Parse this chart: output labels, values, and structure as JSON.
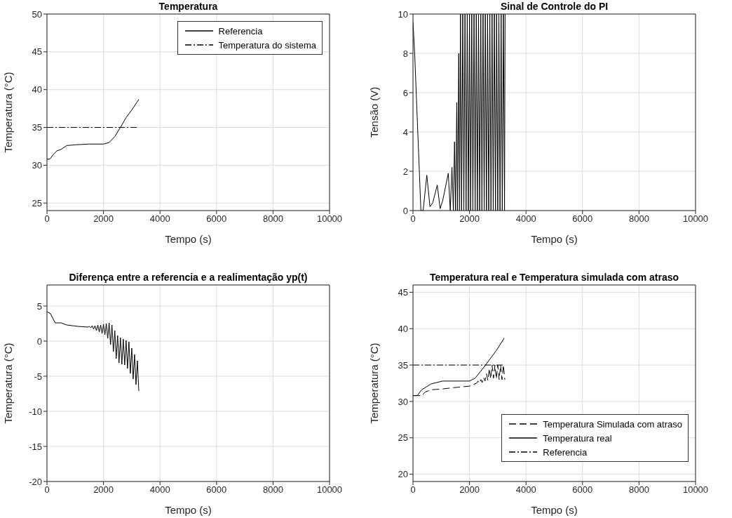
{
  "chart_data": [
    {
      "type": "line",
      "title": "Temperatura",
      "xlabel": "Tempo (s)",
      "ylabel": "Temperatura (°C)",
      "xlim": [
        0,
        10000
      ],
      "ylim": [
        24,
        50
      ],
      "xticks": [
        0,
        2000,
        4000,
        6000,
        8000,
        10000
      ],
      "yticks": [
        25,
        30,
        35,
        40,
        45,
        50
      ],
      "grid": true,
      "legend": "top right",
      "series": [
        {
          "name": "Referencia",
          "color": "#000000",
          "line_style": "solid",
          "x": [
            0,
            100,
            200,
            350,
            500,
            700,
            1000,
            1500,
            2000,
            2200,
            2400,
            2600,
            2800,
            3000,
            3250
          ],
          "values": [
            30.8,
            30.8,
            31.3,
            31.9,
            32.1,
            32.6,
            32.7,
            32.8,
            32.8,
            33.0,
            33.8,
            35.0,
            36.3,
            37.3,
            38.7
          ]
        },
        {
          "name": "Temperatura do sistema",
          "color": "#000000",
          "line_style": "dashdot",
          "x": [
            0,
            3250
          ],
          "values": [
            35,
            35
          ]
        }
      ]
    },
    {
      "type": "line",
      "title": "Sinal de Controle do PI",
      "xlabel": "Tempo (s)",
      "ylabel": "Tensão (V)",
      "xlim": [
        0,
        10000
      ],
      "ylim": [
        0,
        10
      ],
      "xticks": [
        0,
        2000,
        4000,
        6000,
        8000,
        10000
      ],
      "yticks": [
        0,
        2,
        4,
        6,
        8,
        10
      ],
      "grid": true,
      "series": [
        {
          "color": "#000000",
          "line_style": "solid",
          "x": [
            0,
            60,
            280,
            360,
            490,
            600,
            700,
            860,
            960,
            1050,
            1250,
            1320,
            1380,
            1430,
            1470,
            1510,
            1550,
            1580,
            1620,
            1650,
            1680,
            1720,
            1760,
            1800,
            1840,
            1880,
            1920,
            1960,
            2000,
            2040,
            2080,
            2120,
            2160,
            2200,
            2240,
            2280,
            2320,
            2360,
            2400,
            2440,
            2480,
            2520,
            2560,
            2600,
            2640,
            2680,
            2720,
            2760,
            2800,
            2840,
            2880,
            2920,
            2960,
            3000,
            3040,
            3080,
            3120,
            3160,
            3200,
            3240,
            3260
          ],
          "values": [
            9.6,
            8.0,
            0,
            0,
            1.8,
            0.2,
            0.4,
            1.3,
            0.1,
            0.5,
            1.9,
            0,
            2.2,
            0,
            3.5,
            0,
            5.5,
            0,
            8.0,
            0,
            10,
            0,
            10,
            0,
            10,
            0,
            10,
            0,
            10,
            0,
            10,
            0,
            10,
            0,
            10,
            0,
            10,
            0,
            10,
            0,
            10,
            0,
            10,
            0,
            10,
            0,
            10,
            0,
            10,
            0,
            10,
            0,
            10,
            0,
            10,
            0,
            10,
            0,
            10,
            0,
            10
          ]
        }
      ]
    },
    {
      "type": "line",
      "title": "Diferença entre a referencia e a realimentação yp(t)",
      "xlabel": "Tempo (s)",
      "ylabel": "Temperatura (°C)",
      "xlim": [
        0,
        10000
      ],
      "ylim": [
        -20,
        8
      ],
      "xticks": [
        0,
        2000,
        4000,
        6000,
        8000,
        10000
      ],
      "yticks": [
        -20,
        -15,
        -10,
        -5,
        0,
        5
      ],
      "grid": true,
      "series": [
        {
          "color": "#000000",
          "line_style": "solid",
          "x": [
            0,
            125,
            290,
            500,
            700,
            1100,
            1450,
            1500,
            1550,
            1600,
            1650,
            1700,
            1750,
            1800,
            1850,
            1900,
            1950,
            2000,
            2050,
            2100,
            2150,
            2200,
            2250,
            2300,
            2350,
            2400,
            2450,
            2500,
            2550,
            2600,
            2650,
            2700,
            2750,
            2800,
            2850,
            2900,
            2950,
            3000,
            3050,
            3100,
            3150,
            3200,
            3250
          ],
          "values": [
            4.2,
            3.9,
            2.6,
            2.6,
            2.3,
            2.1,
            2.0,
            2.1,
            1.9,
            2.2,
            1.7,
            2.2,
            1.5,
            2.3,
            1.3,
            2.3,
            1.1,
            2.4,
            0.9,
            2.5,
            0.4,
            2.6,
            -0.5,
            2.3,
            -1.5,
            1.5,
            -2.5,
            0.8,
            -3.1,
            0.5,
            -3.3,
            0.3,
            -3.4,
            0.1,
            -3.9,
            -0.1,
            -4.6,
            -1.0,
            -5.4,
            -1.9,
            -6.2,
            -2.8,
            -7.1
          ]
        }
      ]
    },
    {
      "type": "line",
      "title": "Temperatura real e Temperatura simulada com atraso",
      "xlabel": "Tempo (s)",
      "ylabel": "Temperatura (°C)",
      "xlim": [
        0,
        10000
      ],
      "ylim": [
        19,
        46
      ],
      "xticks": [
        0,
        2000,
        4000,
        6000,
        8000,
        10000
      ],
      "yticks": [
        20,
        25,
        30,
        35,
        40,
        45
      ],
      "grid": true,
      "legend": "bottom right",
      "series": [
        {
          "name": "Temperatura Simulada com atraso",
          "color": "#000000",
          "line_style": "dashed",
          "x": [
            0,
            300,
            440,
            640,
            1000,
            1460,
            2000,
            2250,
            2300,
            2350,
            2400,
            2450,
            2500,
            2550,
            2600,
            2650,
            2700,
            2750,
            2800,
            2850,
            2900,
            2950,
            3000,
            3050,
            3100,
            3150,
            3200,
            3250
          ],
          "values": [
            30.8,
            30.8,
            31.3,
            31.6,
            31.7,
            31.9,
            32.1,
            32.5,
            32.8,
            32.5,
            33.0,
            32.6,
            33.3,
            32.8,
            33.8,
            32.9,
            34.5,
            33.1,
            35.0,
            33.2,
            35.0,
            33.1,
            35.0,
            33.0,
            35.0,
            33.0,
            35.0,
            33.0
          ]
        },
        {
          "name": "Temperatura real",
          "color": "#000000",
          "line_style": "solid",
          "x": [
            0,
            150,
            310,
            640,
            1050,
            2000,
            2200,
            2530,
            2950,
            3230
          ],
          "values": [
            30.8,
            30.8,
            31.6,
            32.4,
            32.8,
            32.8,
            33.2,
            34.8,
            37.0,
            38.7
          ]
        },
        {
          "name": "Referencia",
          "color": "#000000",
          "line_style": "dashdot",
          "x": [
            0,
            3250
          ],
          "values": [
            35,
            35
          ]
        }
      ]
    }
  ]
}
